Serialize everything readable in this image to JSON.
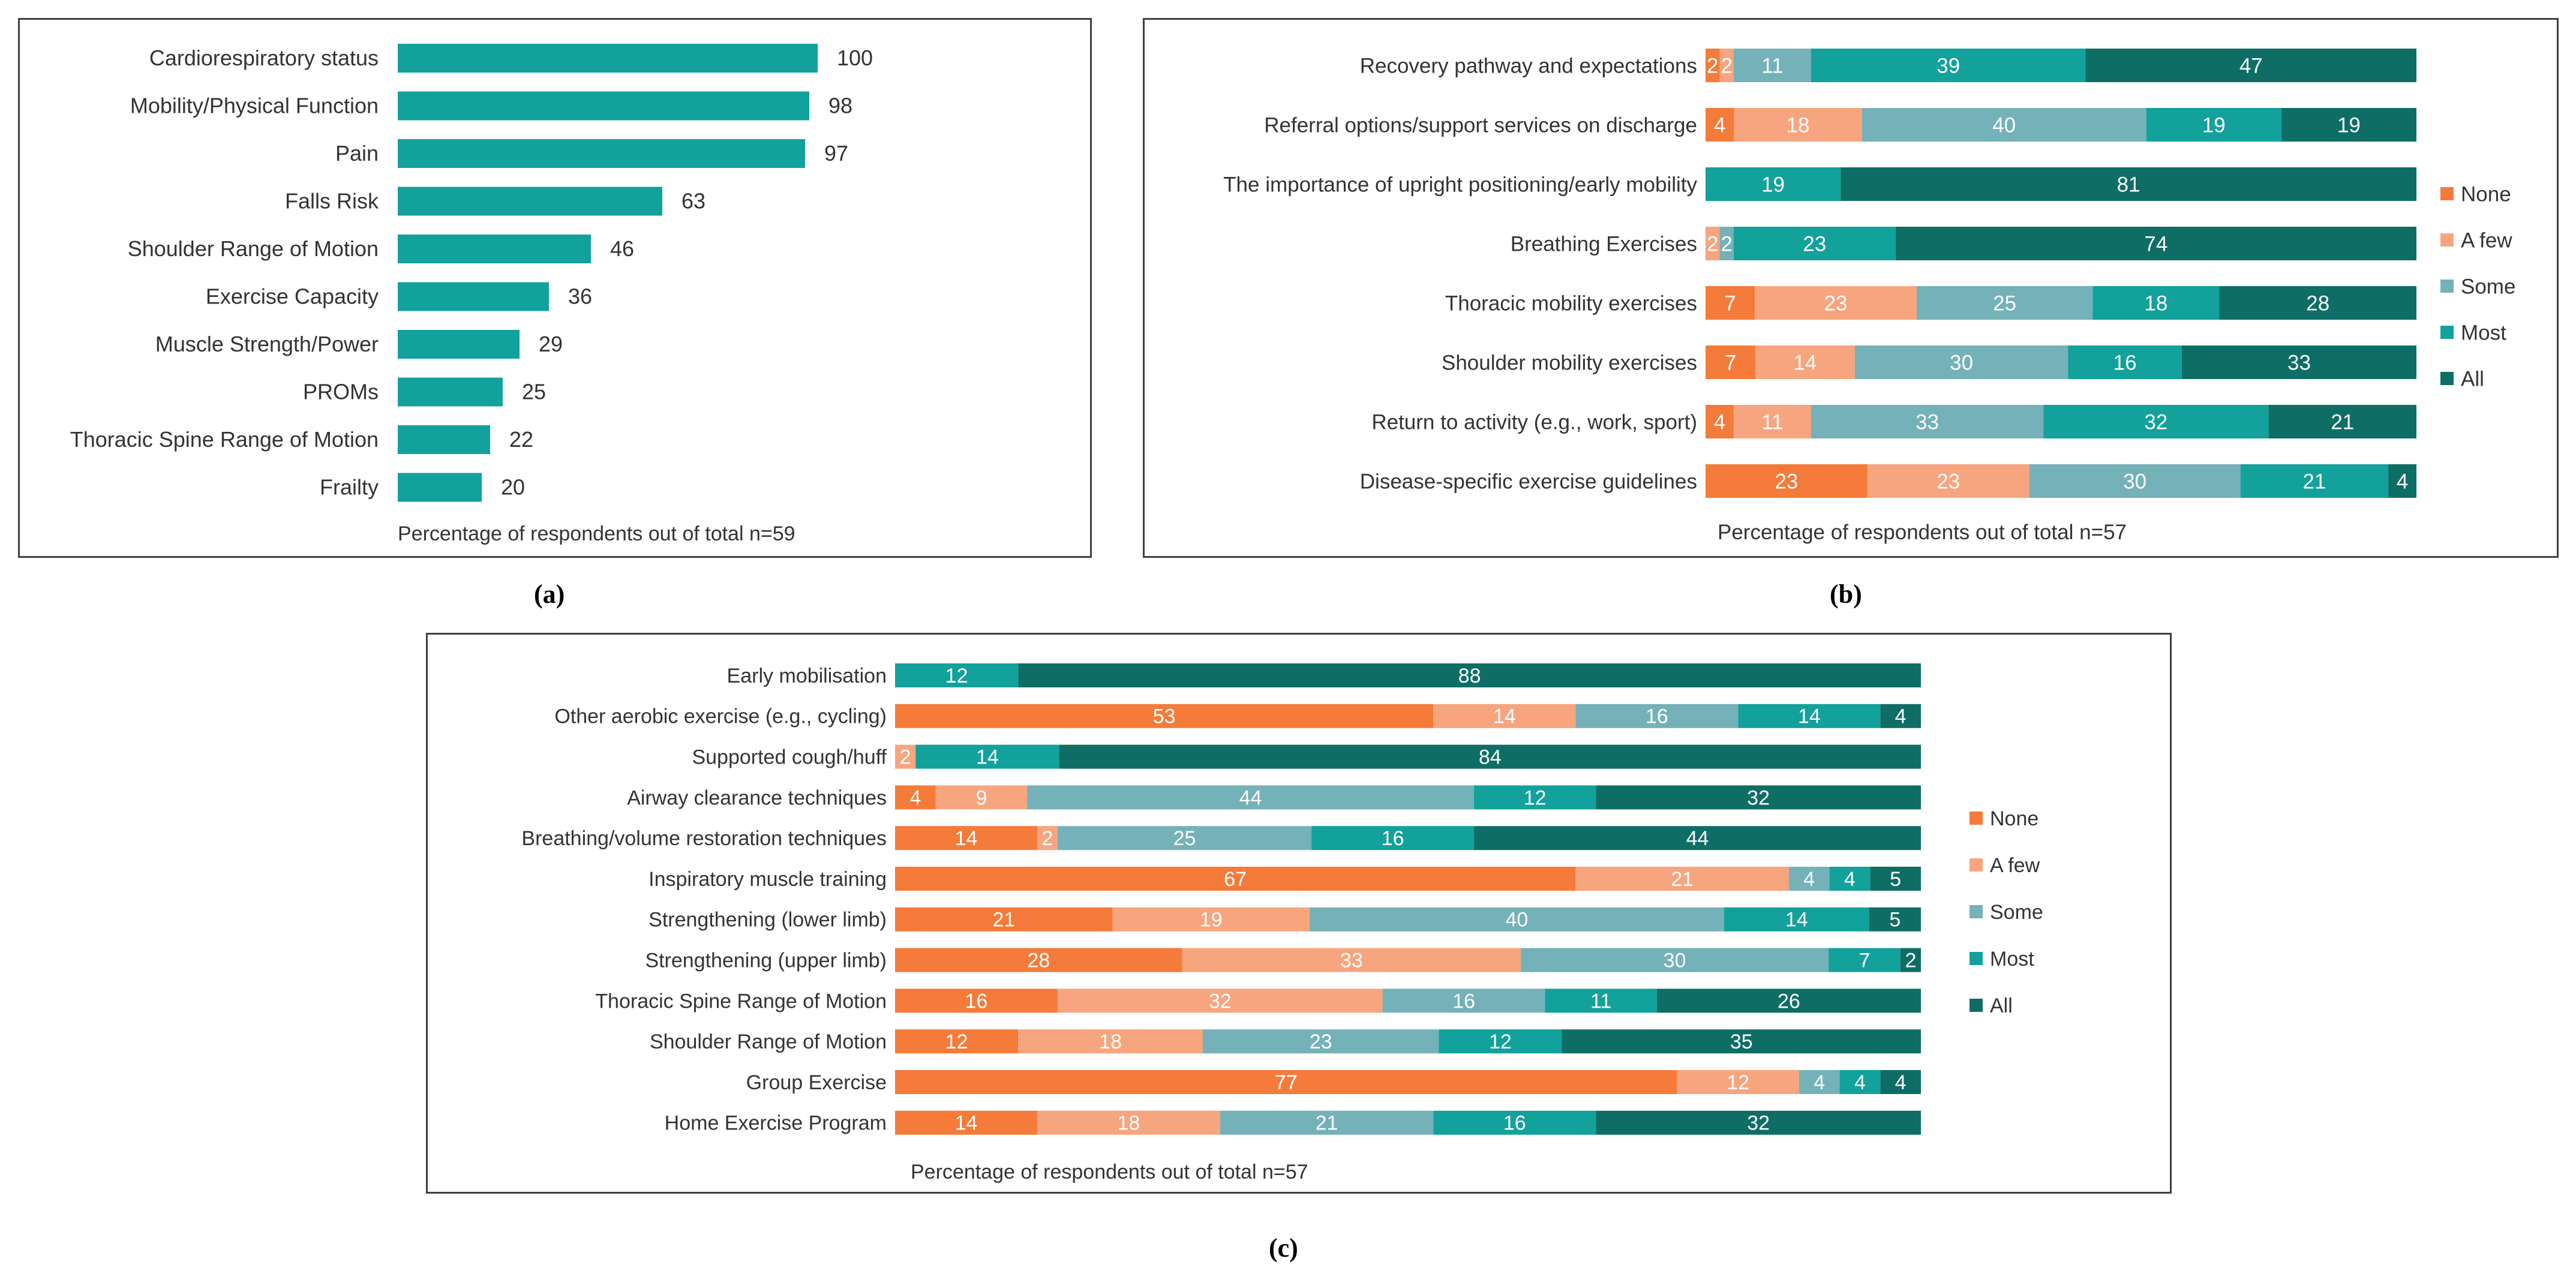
{
  "colors": {
    "none": "#F47B3A",
    "a_few": "#F7A57E",
    "some": "#74B1B8",
    "most": "#12A19B",
    "all": "#0E6E66",
    "bar_single": "#12A19B",
    "label_dark": "#333333",
    "label_light": "#ffffff"
  },
  "panel_labels": {
    "a": "(a)",
    "b": "(b)",
    "c": "(c)"
  },
  "chart_data": [
    {
      "id": "a",
      "type": "bar",
      "orientation": "horizontal",
      "categories": [
        "Cardiorespiratory status",
        "Mobility/Physical Function",
        "Pain",
        "Falls Risk",
        "Shoulder Range of Motion",
        "Exercise Capacity",
        "Muscle Strength/Power",
        "PROMs",
        "Thoracic Spine Range of Motion",
        "Frailty"
      ],
      "values": [
        100,
        98,
        97,
        63,
        46,
        36,
        29,
        25,
        22,
        20
      ],
      "xlabel": "Percentage of respondents out of total n=59",
      "xlim": [
        0,
        100
      ]
    },
    {
      "id": "b",
      "type": "bar",
      "orientation": "horizontal",
      "stacked": true,
      "categories": [
        "Recovery pathway and expectations",
        "Referral options/support services on discharge",
        "The importance of upright positioning/early mobility",
        "Breathing Exercises",
        "Thoracic mobility exercises",
        "Shoulder mobility exercises",
        "Return to activity (e.g., work, sport)",
        "Disease-specific exercise guidelines"
      ],
      "series": [
        {
          "name": "None",
          "values": [
            2,
            4,
            0,
            0,
            7,
            7,
            4,
            23
          ]
        },
        {
          "name": "A few",
          "values": [
            2,
            18,
            0,
            2,
            23,
            14,
            11,
            23
          ]
        },
        {
          "name": "Some",
          "values": [
            11,
            40,
            0,
            2,
            25,
            30,
            33,
            30
          ]
        },
        {
          "name": "Most",
          "values": [
            39,
            19,
            19,
            23,
            18,
            16,
            32,
            21
          ]
        },
        {
          "name": "All",
          "values": [
            47,
            19,
            81,
            74,
            28,
            33,
            21,
            4
          ]
        }
      ],
      "xlabel": "Percentage of respondents out of total n=57",
      "legend": [
        "None",
        "A few",
        "Some",
        "Most",
        "All"
      ],
      "legend_position": "right"
    },
    {
      "id": "c",
      "type": "bar",
      "orientation": "horizontal",
      "stacked": true,
      "categories": [
        "Early mobilisation",
        "Other aerobic exercise (e.g., cycling)",
        "Supported cough/huff",
        "Airway clearance techniques",
        "Breathing/volume restoration techniques",
        "Inspiratory muscle training",
        "Strengthening (lower limb)",
        "Strengthening (upper limb)",
        "Thoracic Spine Range of Motion",
        "Shoulder Range of Motion",
        "Group Exercise",
        "Home Exercise Program"
      ],
      "series": [
        {
          "name": "None",
          "values": [
            0,
            53,
            0,
            4,
            14,
            67,
            21,
            28,
            16,
            12,
            77,
            14
          ]
        },
        {
          "name": "A few",
          "values": [
            0,
            14,
            2,
            9,
            2,
            21,
            19,
            33,
            32,
            18,
            12,
            18
          ]
        },
        {
          "name": "Some",
          "values": [
            0,
            16,
            0,
            44,
            25,
            4,
            40,
            30,
            16,
            23,
            4,
            21
          ]
        },
        {
          "name": "Most",
          "values": [
            12,
            14,
            14,
            12,
            16,
            4,
            14,
            7,
            11,
            12,
            4,
            16
          ]
        },
        {
          "name": "All",
          "values": [
            88,
            4,
            84,
            32,
            44,
            5,
            5,
            2,
            26,
            35,
            4,
            32
          ]
        }
      ],
      "xlabel": "Percentage of respondents out of total n=57",
      "legend": [
        "None",
        "A few",
        "Some",
        "Most",
        "All"
      ],
      "legend_position": "right"
    }
  ]
}
